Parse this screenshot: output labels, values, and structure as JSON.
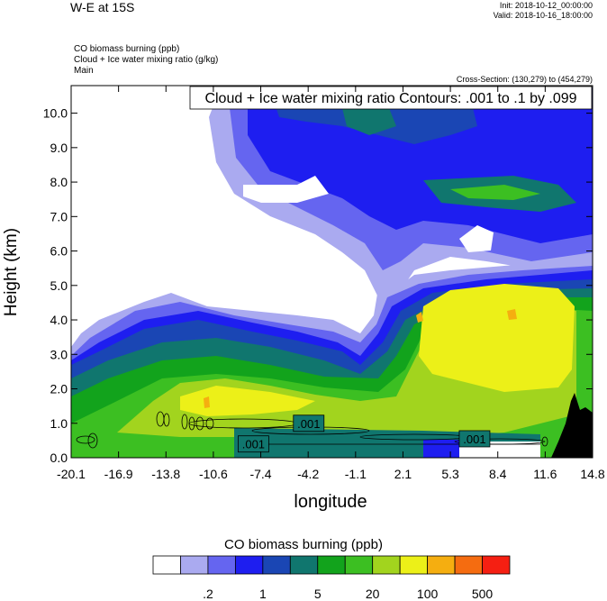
{
  "header": {
    "title": "W-E at 15S",
    "init": "Init: 2018-10-12_00:00:00",
    "valid": "Valid: 2018-10-16_18:00:00",
    "var1": "CO biomass burning   (ppb)",
    "var2": "Cloud + Ice water mixing ratio   (g/kg)",
    "var3": "Main",
    "cross_section": "Cross-Section: (130,279) to (454,279)"
  },
  "chart_data": {
    "type": "heatmap",
    "title": "W-E at 15S",
    "xlabel": "longitude",
    "ylabel": "Height (km)",
    "xlim": [
      -20.1,
      14.8
    ],
    "ylim": [
      0.0,
      10.8
    ],
    "x_ticks": [
      "-20.1",
      "-16.9",
      "-13.8",
      "-10.6",
      "-7.4",
      "-4.2",
      "-1.1",
      "2.1",
      "5.3",
      "8.4",
      "11.6",
      "14.8"
    ],
    "y_ticks": [
      "0.0",
      "1.0",
      "2.0",
      "3.0",
      "4.0",
      "5.0",
      "6.0",
      "7.0",
      "8.0",
      "9.0",
      "10.0"
    ],
    "contour_info": "Cloud + Ice water mixing ratio Contours: .001 to .1 by .099",
    "contour_labels": [
      {
        "text": ".001",
        "lon": -4.2,
        "height": 1.0
      },
      {
        "text": ".001",
        "lon": -7.9,
        "height": 0.4
      },
      {
        "text": ".001",
        "lon": 6.9,
        "height": 0.55
      }
    ],
    "colorbar": {
      "title": "CO biomass burning   (ppb)",
      "labels": [
        ".2",
        "1",
        "5",
        "20",
        "100",
        "500"
      ],
      "colors": [
        "#ffffff",
        "#aaaaf0",
        "#6565f0",
        "#1e1ef0",
        "#1a46b4",
        "#10766e",
        "#12a31c",
        "#3cbf22",
        "#a2d41e",
        "#ecf018",
        "#f5ae10",
        "#f56c10",
        "#f51f12"
      ]
    }
  }
}
